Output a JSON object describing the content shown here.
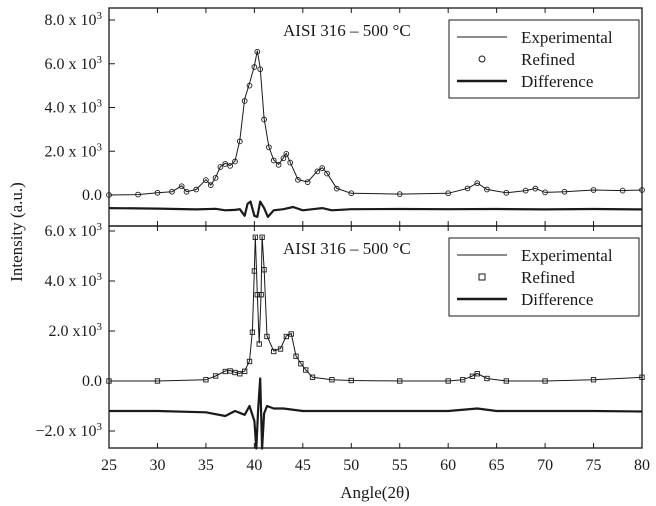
{
  "chart_data": {
    "type": "line",
    "xlabel": "Angle(2θ)",
    "ylabel": "Intensity (a.u.)",
    "xlim": [
      25,
      80
    ],
    "x_ticks": [
      25,
      30,
      35,
      40,
      45,
      50,
      55,
      60,
      65,
      70,
      75,
      80
    ],
    "legend_placement": "top-right",
    "panels": [
      {
        "title": "AISI 316 – 500 °C",
        "ylim": [
          -400,
          8000
        ],
        "y_ticks": [
          {
            "value": 8000,
            "base": "8.0 x 10",
            "exp": "3"
          },
          {
            "value": 6000,
            "base": "6.0 x 10",
            "exp": "3"
          },
          {
            "value": 4000,
            "base": "4.0 x 10",
            "exp": "3"
          },
          {
            "value": 2000,
            "base": "2.0 x 10",
            "exp": "3"
          },
          {
            "value": 0,
            "base": "0.0",
            "exp": ""
          }
        ],
        "legend": [
          {
            "label": "Experimental",
            "style": "thin-line"
          },
          {
            "label": "Refined",
            "style": "circle-marker"
          },
          {
            "label": "Difference",
            "style": "thick-line"
          }
        ],
        "series": [
          {
            "name": "Experimental",
            "x": [
              25,
              28,
              30,
              31.5,
              32.5,
              33,
              34,
              35,
              35.5,
              36,
              36.5,
              37,
              37.5,
              38,
              38.5,
              39,
              39.5,
              40,
              40.3,
              40.6,
              41,
              41.5,
              42,
              42.5,
              43,
              43.3,
              43.7,
              44.5,
              45.5,
              46.5,
              47,
              47.5,
              48.5,
              50,
              55,
              60,
              62,
              63,
              64,
              66,
              68,
              69,
              70,
              72,
              75,
              78,
              80
            ],
            "y": [
              0,
              20,
              100,
              150,
              420,
              150,
              250,
              700,
              450,
              800,
              1300,
              1450,
              1350,
              1550,
              2500,
              4400,
              5100,
              5900,
              6600,
              5800,
              3500,
              2200,
              1600,
              1400,
              1700,
              1900,
              1500,
              700,
              600,
              1100,
              1250,
              1000,
              300,
              80,
              40,
              80,
              300,
              550,
              250,
              100,
              200,
              300,
              120,
              150,
              230,
              200,
              230
            ]
          },
          {
            "name": "Refined",
            "x": [
              25,
              28,
              30,
              31.5,
              32.5,
              33,
              34,
              35,
              35.5,
              36,
              36.5,
              37,
              37.5,
              38,
              38.5,
              39,
              39.5,
              40,
              40.3,
              40.6,
              41,
              41.5,
              42,
              42.5,
              43,
              43.3,
              43.7,
              44.5,
              45.5,
              46.5,
              47,
              47.5,
              48.5,
              50,
              55,
              60,
              62,
              63,
              64,
              66,
              68,
              69,
              70,
              72,
              75,
              78,
              80
            ],
            "y": [
              0,
              20,
              100,
              150,
              400,
              150,
              250,
              680,
              450,
              780,
              1280,
              1420,
              1330,
              1530,
              2450,
              4300,
              5000,
              5850,
              6550,
              5750,
              3450,
              2180,
              1580,
              1380,
              1680,
              1880,
              1480,
              690,
              590,
              1080,
              1230,
              980,
              290,
              80,
              40,
              80,
              300,
              540,
              250,
              100,
              200,
              290,
              120,
              150,
              230,
              200,
              230
            ]
          },
          {
            "name": "Difference",
            "x": [
              25,
              30,
              34,
              36,
              37,
              38,
              38.5,
              39,
              39.3,
              39.6,
              40,
              40.3,
              40.6,
              41,
              41.4,
              42,
              43,
              44,
              45,
              46,
              47,
              48,
              50,
              55,
              60,
              65,
              70,
              75,
              80
            ],
            "y": [
              -600,
              -620,
              -660,
              -630,
              -700,
              -680,
              -650,
              -950,
              -400,
              -300,
              -950,
              -1000,
              -300,
              -600,
              -1000,
              -700,
              -650,
              -550,
              -700,
              -650,
              -600,
              -700,
              -650,
              -640,
              -650,
              -640,
              -660,
              -640,
              -660
            ]
          }
        ]
      },
      {
        "title": "AISI 316 – 500 °C",
        "ylim": [
          -2400,
          6000
        ],
        "y_ticks": [
          {
            "value": 6000,
            "base": "6.0 x 10",
            "exp": "3"
          },
          {
            "value": 4000,
            "base": "4.0 x 10",
            "exp": "3"
          },
          {
            "value": 2000,
            "base": "2.0 x10",
            "exp": "3"
          },
          {
            "value": 0,
            "base": "0.0",
            "exp": ""
          },
          {
            "value": -2000,
            "base": "−2.0 x 10",
            "exp": "3"
          }
        ],
        "legend": [
          {
            "label": "Experimental",
            "style": "thin-line"
          },
          {
            "label": "Refined",
            "style": "square-marker"
          },
          {
            "label": "Difference",
            "style": "thick-line"
          }
        ],
        "series": [
          {
            "name": "Experimental",
            "x": [
              25,
              30,
              35,
              36,
              37,
              37.5,
              38,
              38.5,
              39,
              39.5,
              39.8,
              40.0,
              40.1,
              40.3,
              40.5,
              40.7,
              40.8,
              41.0,
              41.3,
              42,
              42.7,
              43.3,
              43.8,
              44.3,
              44.8,
              45.3,
              46,
              48,
              50,
              55,
              60,
              61.5,
              62.5,
              63,
              64,
              66,
              70,
              75,
              80
            ],
            "y": [
              0,
              0,
              50,
              200,
              400,
              420,
              350,
              300,
              400,
              800,
              2000,
              4500,
              5800,
              3500,
              1500,
              3500,
              5800,
              4500,
              1800,
              1200,
              1300,
              1800,
              1900,
              1000,
              700,
              450,
              150,
              50,
              20,
              0,
              0,
              50,
              200,
              300,
              100,
              0,
              0,
              50,
              150
            ]
          },
          {
            "name": "Refined",
            "x": [
              25,
              30,
              35,
              36,
              37,
              37.5,
              38,
              38.5,
              39,
              39.5,
              39.8,
              40.0,
              40.1,
              40.3,
              40.5,
              40.7,
              40.8,
              41.0,
              41.3,
              42,
              42.7,
              43.3,
              43.8,
              44.3,
              44.8,
              45.3,
              46,
              48,
              50,
              55,
              60,
              61.5,
              62.5,
              63,
              64,
              66,
              70,
              75,
              80
            ],
            "y": [
              0,
              0,
              50,
              200,
              380,
              400,
              340,
              290,
              390,
              780,
              1950,
              4400,
              5750,
              3450,
              1480,
              3450,
              5750,
              4450,
              1780,
              1180,
              1280,
              1780,
              1880,
              990,
              690,
              440,
              150,
              50,
              20,
              0,
              0,
              50,
              190,
              290,
              100,
              0,
              0,
              50,
              150
            ]
          },
          {
            "name": "Difference",
            "x": [
              25,
              30,
              35,
              37,
              38,
              39,
              39.5,
              40,
              40.2,
              40.4,
              40.6,
              40.8,
              41.0,
              41.3,
              42,
              43,
              45,
              50,
              55,
              60,
              63,
              65,
              70,
              75,
              80
            ],
            "y": [
              -1200,
              -1200,
              -1250,
              -1400,
              -1200,
              -1350,
              -1000,
              -1600,
              -2700,
              -1100,
              100,
              -2700,
              -1300,
              -1000,
              -1100,
              -1100,
              -1200,
              -1200,
              -1200,
              -1200,
              -1100,
              -1200,
              -1200,
              -1200,
              -1220
            ]
          }
        ]
      }
    ]
  }
}
